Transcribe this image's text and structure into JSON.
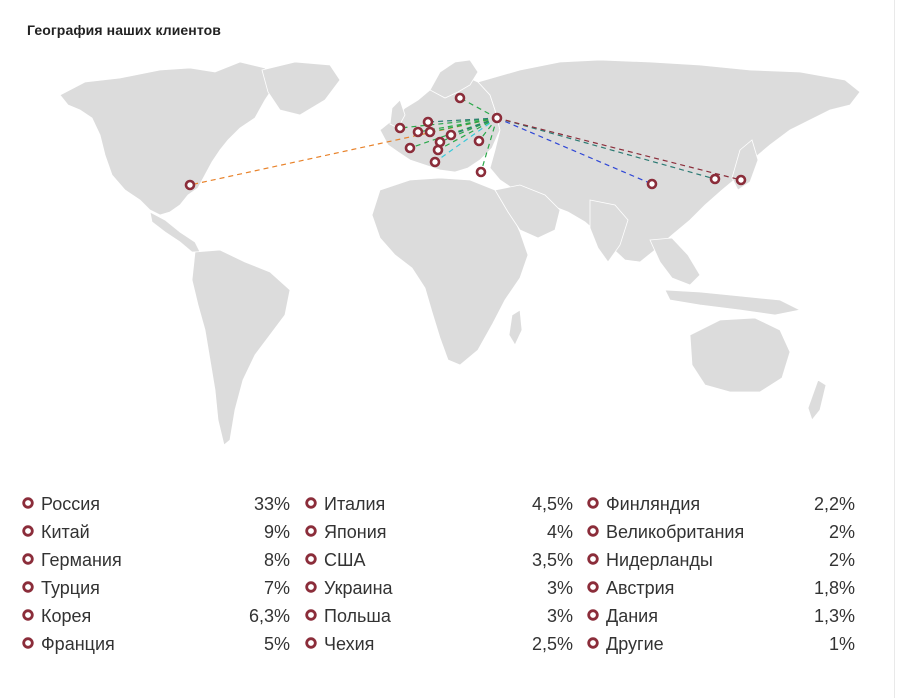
{
  "title": "География наших клиентов",
  "colors": {
    "land": "#dcdcdc",
    "marker": "#8b2d3a",
    "line_green": "#2aa84a",
    "line_orange": "#e8822a",
    "line_blue": "#2f47d6",
    "line_darkred": "#8b2d3a",
    "line_teal": "#2b7a73",
    "line_cyan": "#3ac9d9"
  },
  "legend": [
    [
      {
        "name": "Россия",
        "value": "33%"
      },
      {
        "name": "Китай",
        "value": "9%"
      },
      {
        "name": "Германия",
        "value": "8%"
      },
      {
        "name": "Турция",
        "value": "7%"
      },
      {
        "name": "Корея",
        "value": "6,3%"
      },
      {
        "name": "Франция",
        "value": "5%"
      }
    ],
    [
      {
        "name": "Италия",
        "value": "4,5%"
      },
      {
        "name": "Япония",
        "value": "4%"
      },
      {
        "name": "США",
        "value": "3,5%"
      },
      {
        "name": "Украина",
        "value": "3%"
      },
      {
        "name": "Польша",
        "value": "3%"
      },
      {
        "name": "Чехия",
        "value": "2,5%"
      }
    ],
    [
      {
        "name": "Финляндия",
        "value": "2,2%"
      },
      {
        "name": "Великобритания",
        "value": "2%"
      },
      {
        "name": "Нидерланды",
        "value": "2%"
      },
      {
        "name": "Австрия",
        "value": "1,8%"
      },
      {
        "name": "Дания",
        "value": "1,3%"
      },
      {
        "name": "Другие",
        "value": "1%"
      }
    ]
  ]
}
